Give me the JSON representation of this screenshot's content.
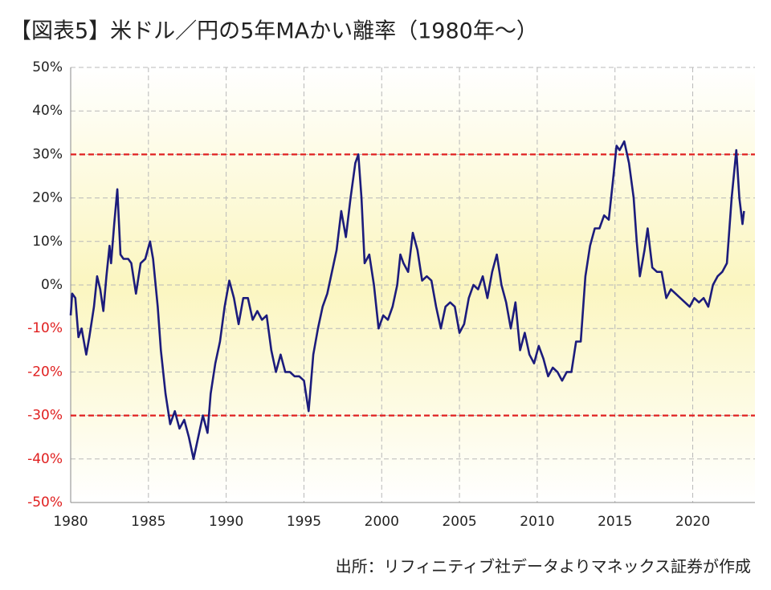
{
  "chart_data": {
    "type": "line",
    "title": "【図表5】米ドル／円の5年MAかい離率（1980年～）",
    "source": "出所：リフィニティブ社データよりマネックス証券が作成",
    "x": [
      1980.0,
      1980.1,
      1980.3,
      1980.5,
      1980.7,
      1981.0,
      1981.2,
      1981.5,
      1981.7,
      1981.9,
      1982.1,
      1982.3,
      1982.5,
      1982.6,
      1982.8,
      1983.0,
      1983.2,
      1983.4,
      1983.7,
      1983.9,
      1984.2,
      1984.5,
      1984.8,
      1985.1,
      1985.3,
      1985.6,
      1985.8,
      1986.1,
      1986.4,
      1986.7,
      1987.0,
      1987.3,
      1987.6,
      1987.9,
      1988.2,
      1988.5,
      1988.8,
      1989.0,
      1989.3,
      1989.6,
      1989.9,
      1990.2,
      1990.5,
      1990.8,
      1991.1,
      1991.4,
      1991.7,
      1992.0,
      1992.3,
      1992.6,
      1992.9,
      1993.2,
      1993.5,
      1993.8,
      1994.1,
      1994.4,
      1994.7,
      1995.0,
      1995.3,
      1995.6,
      1995.9,
      1996.2,
      1996.5,
      1996.8,
      1997.1,
      1997.4,
      1997.7,
      1998.0,
      1998.3,
      1998.5,
      1998.7,
      1998.9,
      1999.2,
      1999.5,
      1999.8,
      2000.1,
      2000.4,
      2000.7,
      2001.0,
      2001.2,
      2001.4,
      2001.7,
      2002.0,
      2002.3,
      2002.6,
      2002.9,
      2003.2,
      2003.5,
      2003.8,
      2004.1,
      2004.4,
      2004.7,
      2005.0,
      2005.3,
      2005.6,
      2005.9,
      2006.2,
      2006.5,
      2006.8,
      2007.1,
      2007.4,
      2007.7,
      2008.0,
      2008.3,
      2008.6,
      2008.9,
      2009.2,
      2009.5,
      2009.8,
      2010.1,
      2010.4,
      2010.7,
      2011.0,
      2011.3,
      2011.6,
      2011.9,
      2012.2,
      2012.5,
      2012.8,
      2013.1,
      2013.4,
      2013.7,
      2014.0,
      2014.3,
      2014.6,
      2014.9,
      2015.1,
      2015.3,
      2015.6,
      2015.9,
      2016.2,
      2016.4,
      2016.6,
      2016.9,
      2017.1,
      2017.4,
      2017.7,
      2018.0,
      2018.3,
      2018.6,
      2018.9,
      2019.2,
      2019.5,
      2019.8,
      2020.1,
      2020.4,
      2020.7,
      2021.0,
      2021.3,
      2021.6,
      2021.9,
      2022.2,
      2022.5,
      2022.8,
      2023.0,
      2023.2,
      2023.3
    ],
    "values": [
      -7,
      -2,
      -3,
      -12,
      -10,
      -16,
      -12,
      -5,
      2,
      -1,
      -6,
      2,
      9,
      5,
      14,
      22,
      7,
      6,
      6,
      5,
      -2,
      5,
      6,
      10,
      6,
      -5,
      -15,
      -25,
      -32,
      -29,
      -33,
      -31,
      -35,
      -40,
      -35,
      -30,
      -34,
      -25,
      -18,
      -13,
      -5,
      1,
      -3,
      -9,
      -3,
      -3,
      -8,
      -6,
      -8,
      -7,
      -15,
      -20,
      -16,
      -20,
      -20,
      -21,
      -21,
      -22,
      -29,
      -16,
      -10,
      -5,
      -2,
      3,
      8,
      17,
      11,
      20,
      28,
      30,
      20,
      5,
      7,
      0,
      -10,
      -7,
      -8,
      -5,
      0,
      7,
      5,
      3,
      12,
      8,
      1,
      2,
      1,
      -5,
      -10,
      -5,
      -4,
      -5,
      -11,
      -9,
      -3,
      0,
      -1,
      2,
      -3,
      3,
      7,
      0,
      -4,
      -10,
      -4,
      -15,
      -11,
      -16,
      -18,
      -14,
      -17,
      -21,
      -19,
      -20,
      -22,
      -20,
      -20,
      -13,
      -13,
      2,
      9,
      13,
      13,
      16,
      15,
      25,
      32,
      31,
      33,
      28,
      20,
      10,
      2,
      8,
      13,
      4,
      3,
      3,
      -3,
      -1,
      -2,
      -3,
      -4,
      -5,
      -3,
      -4,
      -3,
      -5,
      0,
      2,
      3,
      5,
      20,
      31,
      20,
      14,
      17
    ],
    "color": "#1c1c7c",
    "xlim": [
      1980,
      2024
    ],
    "xticks": [
      1980,
      1985,
      1990,
      1995,
      2000,
      2005,
      2010,
      2015,
      2020
    ],
    "ylim": [
      -50,
      50
    ],
    "yticks": [
      {
        "value": 50,
        "label": "50%"
      },
      {
        "value": 40,
        "label": "40%"
      },
      {
        "value": 30,
        "label": "30%"
      },
      {
        "value": 20,
        "label": "20%"
      },
      {
        "value": 10,
        "label": "10%"
      },
      {
        "value": 0,
        "label": "0%"
      },
      {
        "value": -10,
        "label": "-10%"
      },
      {
        "value": -20,
        "label": "-20%"
      },
      {
        "value": -30,
        "label": "-30%"
      },
      {
        "value": -40,
        "label": "-40%"
      },
      {
        "value": -50,
        "label": "-50%"
      }
    ],
    "reference_lines": [
      30,
      -30
    ],
    "reference_color": "#e02020",
    "negative_label_color": "#e02020",
    "grid": true
  }
}
